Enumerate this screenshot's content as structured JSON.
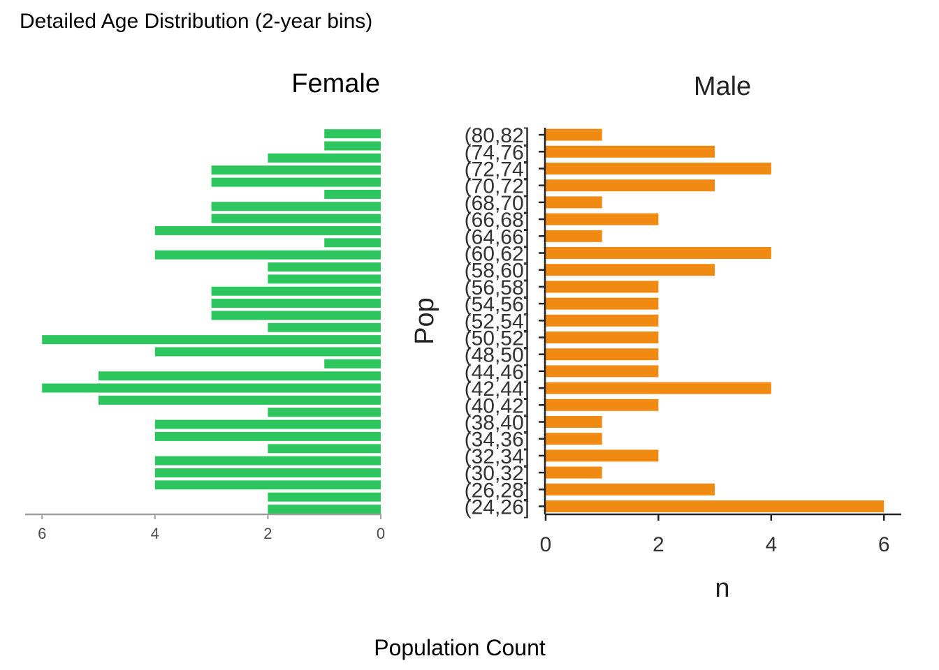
{
  "chart_data": {
    "type": "bar",
    "orientation": "horizontal",
    "title": "Detailed Age Distribution (2-year bins)",
    "xlabel": "Population Count",
    "panels": [
      {
        "name": "Female",
        "color": "#2DC65E",
        "direction": "reversed",
        "xlim": [
          0,
          6
        ],
        "xticks": [
          6,
          4,
          2,
          0
        ],
        "values": [
          1,
          1,
          2,
          3,
          3,
          1,
          3,
          3,
          4,
          1,
          4,
          2,
          2,
          3,
          3,
          3,
          2,
          6,
          4,
          1,
          5,
          6,
          5,
          2,
          4,
          4,
          2,
          4,
          4,
          4,
          2,
          2
        ]
      },
      {
        "name": "Male",
        "color": "#F08A12",
        "ylabel": "Pop",
        "xlabel": "n",
        "xlim": [
          0,
          6
        ],
        "xticks": [
          0,
          2,
          4,
          6
        ],
        "categories": [
          "(80,82]",
          "(74,76]",
          "(72,74]",
          "(70,72]",
          "(68,70]",
          "(66,68]",
          "(64,66]",
          "(60,62]",
          "(58,60]",
          "(56,58]",
          "(54,56]",
          "(52,54]",
          "(50,52]",
          "(48,50]",
          "(44,46]",
          "(42,44]",
          "(40,42]",
          "(38,40]",
          "(34,36]",
          "(32,34]",
          "(30,32]",
          "(26,28]",
          "(24,26]"
        ],
        "values": [
          1,
          3,
          4,
          3,
          1,
          2,
          1,
          4,
          3,
          2,
          2,
          2,
          2,
          2,
          2,
          4,
          2,
          1,
          1,
          2,
          1,
          3,
          6
        ]
      }
    ]
  }
}
